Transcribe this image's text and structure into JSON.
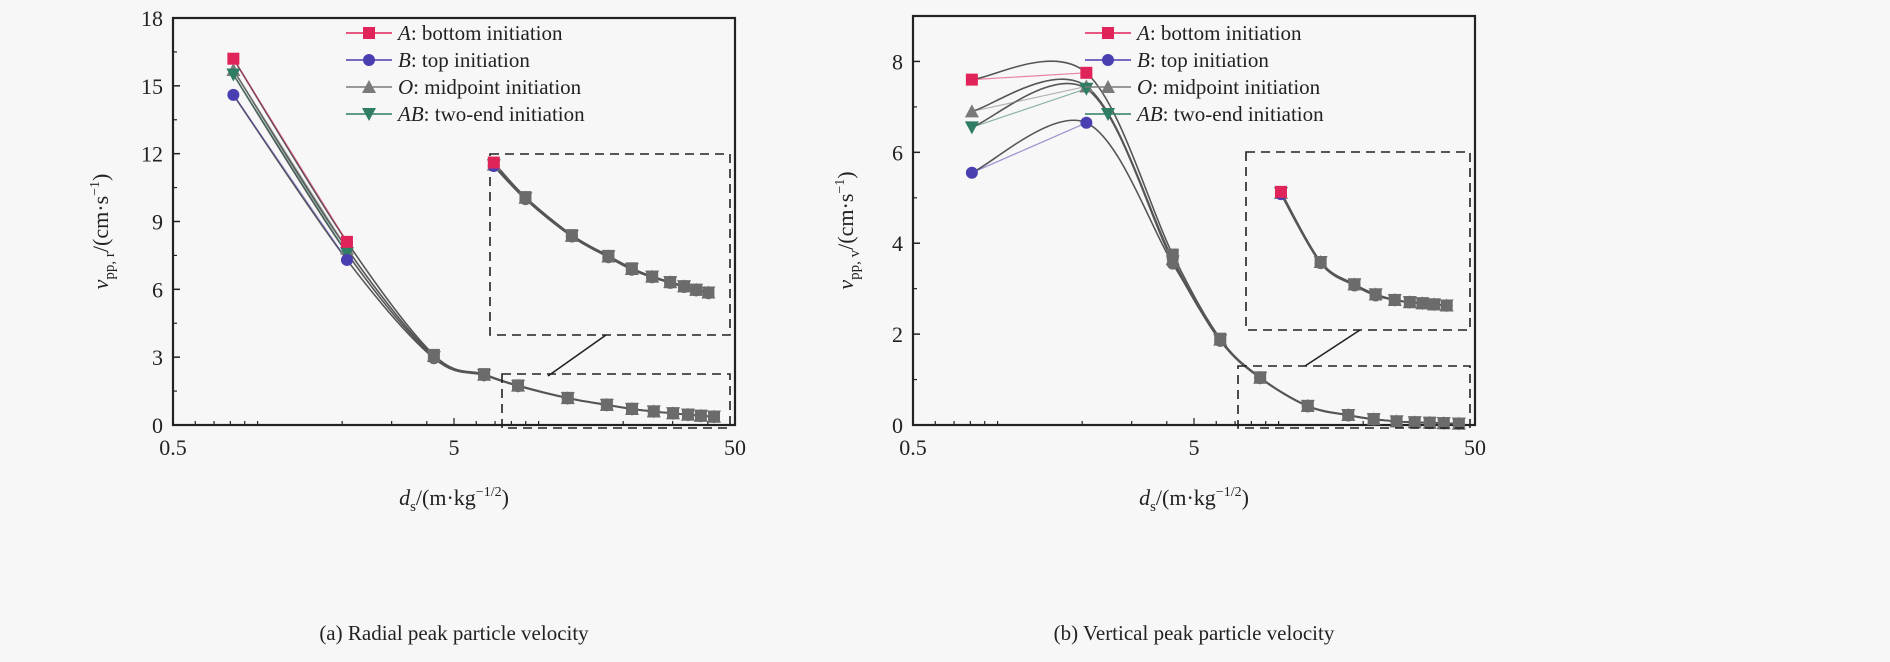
{
  "chart_data": [
    {
      "type": "line",
      "panel": "a",
      "caption": "(a) Radial peak particle velocity",
      "xlabel": {
        "main": "d",
        "sub": "s",
        "unit": "/(m·kg",
        "sup": "−1/2",
        "close": ")"
      },
      "ylabel": {
        "main": "v",
        "sub": "pp, r",
        "unit": "/(cm·s",
        "sup": "−1",
        "close": ")"
      },
      "xscale": "log",
      "xlim": [
        0.5,
        50
      ],
      "ylim": [
        0,
        18
      ],
      "xticks": [
        0.5,
        5,
        50
      ],
      "xtick_labels": [
        "0.5",
        "5",
        "50"
      ],
      "yticks": [
        0,
        3,
        6,
        9,
        12,
        15,
        18
      ],
      "ytick_labels": [
        "0",
        "3",
        "6",
        "9",
        "12",
        "15",
        "18"
      ],
      "legend_position": "top-right",
      "x": [
        0.82,
        2.08,
        4.24,
        6.4,
        8.45,
        12.7,
        17.5,
        21.5,
        25.7,
        30.1,
        34.0,
        37.8,
        42.1
      ],
      "series": [
        {
          "key": "A",
          "name": "bottom initiation",
          "marker": "square",
          "color": "#e0245a",
          "values": [
            16.2,
            8.1,
            3.1,
            2.25,
            1.75,
            1.2,
            0.9,
            0.72,
            0.6,
            0.52,
            0.46,
            0.41,
            0.37
          ]
        },
        {
          "key": "B",
          "name": "top initiation",
          "marker": "circle",
          "color": "#4a3fb0",
          "values": [
            14.6,
            7.3,
            2.95,
            2.2,
            1.72,
            1.18,
            0.88,
            0.7,
            0.59,
            0.51,
            0.45,
            0.4,
            0.36
          ]
        },
        {
          "key": "O",
          "name": "midpoint initiation",
          "marker": "triangle-up",
          "color": "#7a7a7a",
          "values": [
            15.7,
            7.8,
            3.05,
            2.22,
            1.74,
            1.19,
            0.89,
            0.71,
            0.6,
            0.52,
            0.46,
            0.41,
            0.37
          ]
        },
        {
          "key": "AB",
          "name": "two-end initiation",
          "marker": "triangle-down",
          "color": "#2e7d64",
          "values": [
            15.5,
            7.6,
            3.0,
            2.21,
            1.73,
            1.19,
            0.89,
            0.71,
            0.6,
            0.52,
            0.46,
            0.41,
            0.37
          ]
        }
      ],
      "inset": {
        "source_xlim": [
          7.0,
          45
        ],
        "source_ylim": [
          -0.1,
          2.2
        ],
        "from_index": 3
      }
    },
    {
      "type": "line",
      "panel": "b",
      "caption": "(b) Vertical peak particle velocity",
      "xlabel": {
        "main": "d",
        "sub": "s",
        "unit": "/(m·kg",
        "sup": "−1/2",
        "close": ")"
      },
      "ylabel": {
        "main": "v",
        "sub": "pp, v",
        "unit": "/(cm·s",
        "sup": "−1",
        "close": ")"
      },
      "xscale": "log",
      "xlim": [
        0.5,
        50
      ],
      "ylim": [
        0,
        9
      ],
      "xticks": [
        0.5,
        5,
        50
      ],
      "xtick_labels": [
        "0.5",
        "5",
        "50"
      ],
      "yticks": [
        0,
        2,
        4,
        6,
        8
      ],
      "ytick_labels": [
        "0",
        "2",
        "4",
        "6",
        "8"
      ],
      "legend_position": "top-right",
      "x": [
        0.81,
        2.07,
        4.2,
        6.2,
        8.6,
        12.7,
        17.7,
        21.8,
        26.3,
        30.5,
        34.5,
        38.7,
        43.8
      ],
      "series": [
        {
          "key": "A",
          "name": "bottom initiation",
          "marker": "square",
          "color": "#e0245a",
          "values": [
            7.6,
            7.75,
            3.75,
            1.9,
            1.05,
            0.42,
            0.22,
            0.13,
            0.08,
            0.06,
            0.05,
            0.04,
            0.03
          ]
        },
        {
          "key": "B",
          "name": "top initiation",
          "marker": "circle",
          "color": "#4a3fb0",
          "values": [
            5.55,
            6.65,
            3.55,
            1.85,
            1.03,
            0.41,
            0.21,
            0.12,
            0.08,
            0.06,
            0.05,
            0.04,
            0.03
          ]
        },
        {
          "key": "O",
          "name": "midpoint initiation",
          "marker": "triangle-up",
          "color": "#7a7a7a",
          "values": [
            6.9,
            7.45,
            3.65,
            1.88,
            1.04,
            0.42,
            0.22,
            0.13,
            0.08,
            0.06,
            0.05,
            0.04,
            0.03
          ]
        },
        {
          "key": "AB",
          "name": "two-end initiation",
          "marker": "triangle-down",
          "color": "#2e7d64",
          "values": [
            6.55,
            7.4,
            3.6,
            1.87,
            1.04,
            0.42,
            0.22,
            0.13,
            0.08,
            0.06,
            0.05,
            0.04,
            0.03
          ]
        }
      ],
      "inset": {
        "source_xlim": [
          7.0,
          48
        ],
        "source_ylim": [
          -0.1,
          1.3
        ],
        "from_index": 4
      }
    }
  ]
}
